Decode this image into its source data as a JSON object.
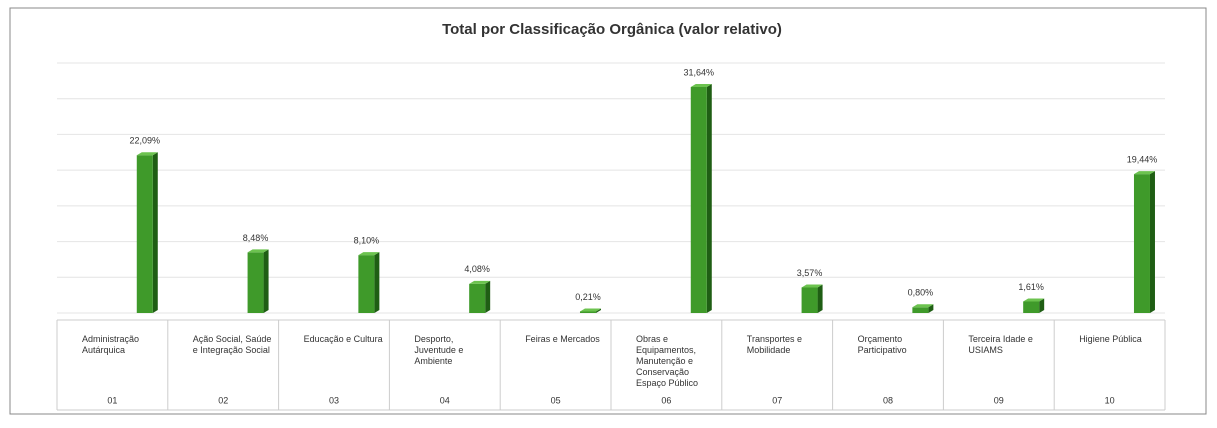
{
  "chart_data": {
    "type": "bar3d",
    "title": "Total por Classificação Orgânica (valor relativo)",
    "categories": [
      "Administração Autárquica",
      "Ação Social, Saúde e Integração Social",
      "Educação e Cultura",
      "Desporto, Juventude e Ambiente",
      "Feiras e Mercados",
      "Obras e Equipamentos, Manutenção e Conservação Espaço Público",
      "Transportes e Mobilidade",
      "Orçamento Participativo",
      "Terceira Idade e USIAMS",
      "Higiene Pública"
    ],
    "codes": [
      "01",
      "02",
      "03",
      "04",
      "05",
      "06",
      "07",
      "08",
      "09",
      "10"
    ],
    "values": [
      22.09,
      8.48,
      8.1,
      4.08,
      0.21,
      31.64,
      3.57,
      0.8,
      1.61,
      19.44
    ],
    "value_labels": [
      "22,09%",
      "8,48%",
      "8,10%",
      "4,08%",
      "0,21%",
      "31,64%",
      "3,57%",
      "0,80%",
      "1,61%",
      "19,44%"
    ],
    "color": "#3f9a2a",
    "ylim": [
      0,
      35
    ],
    "yticks": [
      0,
      5,
      10,
      15,
      20,
      25,
      30,
      35
    ],
    "grid": true
  }
}
